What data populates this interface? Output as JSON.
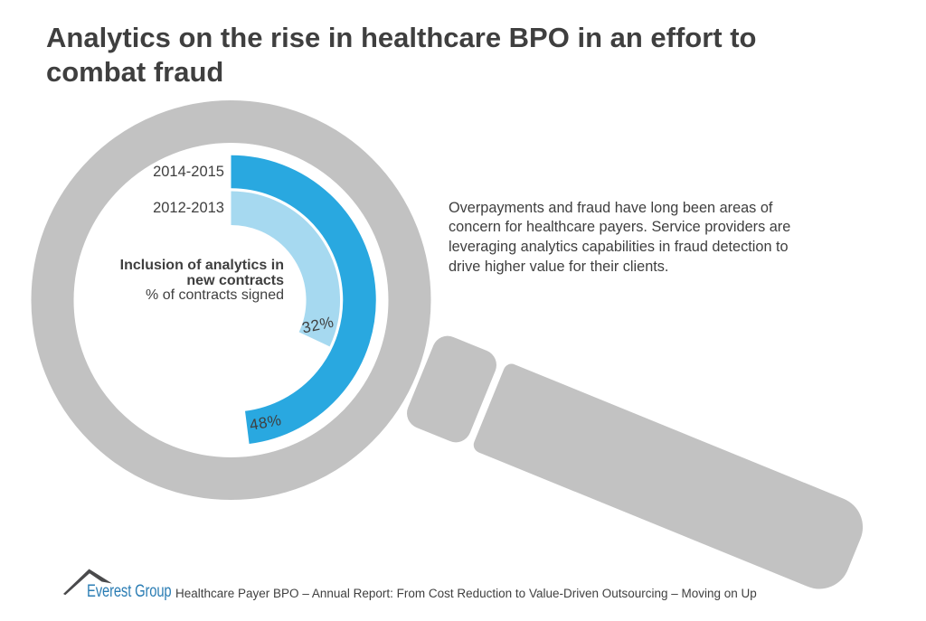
{
  "title": {
    "lines": [
      "Analytics on the rise in healthcare BPO in an effort to",
      "combat fraud"
    ]
  },
  "description": {
    "lines": [
      "Overpayments and fraud have long been areas of",
      "concern for healthcare payers. Service providers are",
      "leveraging analytics capabilities in fraud detection to",
      "drive higher value for their clients."
    ]
  },
  "chart": {
    "center_label": {
      "line1": "Inclusion of analytics in",
      "line2": "new contracts",
      "line3": "% of contracts signed"
    },
    "series": [
      {
        "label": "2014-2015",
        "value": 48,
        "value_label": "48%",
        "color": "#29a8e0"
      },
      {
        "label": "2012-2013",
        "value": 32,
        "value_label": "32%",
        "color": "#a6d9f0"
      }
    ]
  },
  "chart_data": {
    "type": "pie",
    "subtype": "concentric-arc-donut",
    "categories": [
      "2014-2015",
      "2012-2013"
    ],
    "values": [
      48,
      32
    ],
    "unit": "%",
    "title": "Analytics on the rise in healthcare BPO in an effort to combat fraud",
    "center_label": "Inclusion of analytics in new contracts",
    "center_sublabel": "% of contracts signed",
    "data_labels": [
      "48%",
      "32%"
    ],
    "colors": [
      "#29a8e0",
      "#a6d9f0"
    ],
    "start_angle_deg": 0,
    "sweep_direction": "clockwise",
    "legend_position": "inner-left",
    "annotation": "Overpayments and fraud have long been areas of concern for healthcare payers. Service providers are leveraging analytics capabilities in fraud detection to drive higher value for their clients."
  },
  "footer": {
    "logo_text": "Everest Group",
    "caption": "Healthcare Payer BPO – Annual Report: From Cost Reduction to Value-Driven Outsourcing – Moving on Up"
  },
  "colors": {
    "background": "#ffffff",
    "magnifier_gray": "#c2c2c2",
    "text_dark": "#3f3f3f",
    "logo_blue": "#2b7db4",
    "logo_mountain": "#4c4c4e",
    "arc_2014_2015": "#29a8e0",
    "arc_2012_2013": "#a6d9f0"
  }
}
